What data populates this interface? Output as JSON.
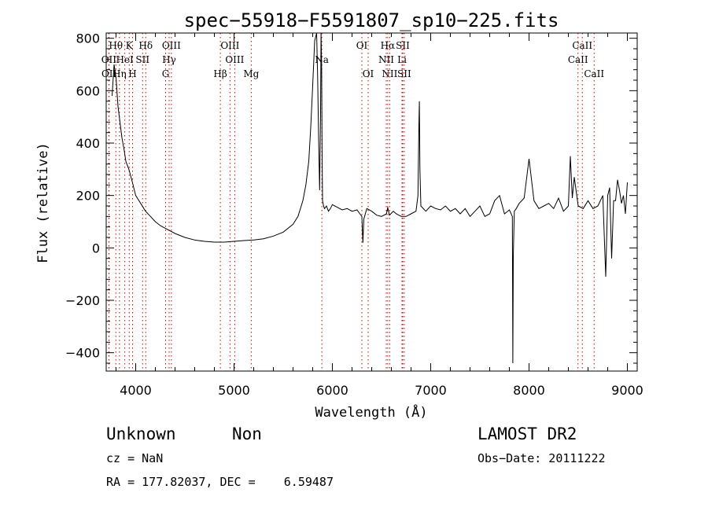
{
  "chart_data": {
    "type": "line",
    "title": "spec−55918−F5591807_sp10−225.fits",
    "xlabel": "Wavelength (Å)",
    "ylabel": "Flux (relative)",
    "xlim": [
      3700,
      9100
    ],
    "ylim": [
      -470,
      820
    ],
    "xticks": [
      4000,
      5000,
      6000,
      7000,
      8000,
      9000
    ],
    "yticks": [
      -400,
      -200,
      0,
      200,
      400,
      600,
      800
    ],
    "ytick_labels": [
      "−400",
      "−200",
      "0",
      "200",
      "400",
      "600",
      "800"
    ],
    "grid": false,
    "line_color": "#000000",
    "marker_color": "#cc0000",
    "series": [
      {
        "x": [
          3760,
          3780,
          3800,
          3820,
          3840,
          3860,
          3880,
          3900,
          3930,
          3960,
          4000,
          4050,
          4100,
          4150,
          4200,
          4250,
          4300,
          4350,
          4400,
          4500,
          4600,
          4700,
          4800,
          4900,
          5000,
          5100,
          5200,
          5300,
          5400,
          5500,
          5600,
          5650,
          5700,
          5730,
          5760,
          5780,
          5800,
          5820,
          5840,
          5850,
          5860,
          5870,
          5880,
          5885,
          5890,
          5895,
          5900,
          5910,
          5920,
          5940,
          5960,
          5980,
          6000,
          6050,
          6100,
          6150,
          6200,
          6250,
          6280,
          6300,
          6310,
          6320,
          6350,
          6400,
          6450,
          6500,
          6550,
          6563,
          6580,
          6620,
          6650,
          6700,
          6750,
          6800,
          6850,
          6870,
          6880,
          6885,
          6890,
          6900,
          6950,
          7000,
          7050,
          7100,
          7150,
          7200,
          7250,
          7300,
          7350,
          7400,
          7450,
          7500,
          7550,
          7600,
          7650,
          7700,
          7750,
          7800,
          7830,
          7835,
          7840,
          7850,
          7870,
          7900,
          7950,
          8000,
          8050,
          8100,
          8150,
          8200,
          8250,
          8300,
          8350,
          8400,
          8420,
          8440,
          8460,
          8500,
          8550,
          8600,
          8650,
          8700,
          8750,
          8780,
          8800,
          8820,
          8840,
          8860,
          8880,
          8900,
          8920,
          8940,
          8960,
          8980,
          9000
        ],
        "y": [
          580,
          700,
          650,
          540,
          480,
          420,
          380,
          330,
          300,
          260,
          200,
          170,
          140,
          120,
          100,
          85,
          75,
          65,
          55,
          40,
          30,
          25,
          22,
          22,
          25,
          28,
          30,
          35,
          45,
          60,
          90,
          120,
          180,
          240,
          330,
          460,
          620,
          790,
          820,
          650,
          420,
          220,
          520,
          820,
          700,
          380,
          180,
          160,
          150,
          160,
          140,
          150,
          165,
          155,
          145,
          150,
          140,
          145,
          130,
          120,
          20,
          110,
          150,
          140,
          125,
          120,
          130,
          155,
          125,
          140,
          130,
          120,
          120,
          130,
          140,
          200,
          470,
          560,
          300,
          160,
          140,
          160,
          150,
          145,
          160,
          140,
          150,
          130,
          150,
          120,
          140,
          160,
          120,
          130,
          180,
          200,
          130,
          145,
          120,
          -440,
          -30,
          140,
          150,
          170,
          190,
          340,
          180,
          150,
          160,
          170,
          150,
          190,
          140,
          160,
          350,
          190,
          270,
          160,
          150,
          180,
          150,
          160,
          200,
          -110,
          200,
          230,
          -40,
          180,
          180,
          260,
          220,
          170,
          200,
          130,
          250
        ]
      }
    ],
    "line_labels": [
      {
        "text": "Hθ",
        "x": 3798,
        "row": 1
      },
      {
        "text": "K",
        "x": 3934,
        "row": 1
      },
      {
        "text": "Hδ",
        "x": 4102,
        "row": 1
      },
      {
        "text": "OIII",
        "x": 4363,
        "row": 1
      },
      {
        "text": "OIII",
        "x": 4959,
        "row": 1
      },
      {
        "text": "OI",
        "x": 6300,
        "row": 1
      },
      {
        "text": "Hα",
        "x": 6563,
        "row": 1
      },
      {
        "text": "SII",
        "x": 6716,
        "row": 1
      },
      {
        "text": "CaII",
        "x": 8542,
        "row": 1
      },
      {
        "text": "OII",
        "x": 3727,
        "row": 2
      },
      {
        "text": "HeI",
        "x": 3889,
        "row": 2
      },
      {
        "text": "SII",
        "x": 4070,
        "row": 2
      },
      {
        "text": "Hγ",
        "x": 4340,
        "row": 2
      },
      {
        "text": "OIII",
        "x": 5007,
        "row": 2
      },
      {
        "text": "Na",
        "x": 5893,
        "row": 2
      },
      {
        "text": "NII",
        "x": 6548,
        "row": 2
      },
      {
        "text": "Li",
        "x": 6708,
        "row": 2
      },
      {
        "text": "CaII",
        "x": 8498,
        "row": 2
      },
      {
        "text": "OII",
        "x": 3729,
        "row": 3
      },
      {
        "text": "Hη",
        "x": 3835,
        "row": 3
      },
      {
        "text": "H",
        "x": 3968,
        "row": 3
      },
      {
        "text": "G",
        "x": 4304,
        "row": 3
      },
      {
        "text": "Hβ",
        "x": 4861,
        "row": 3
      },
      {
        "text": "Mg",
        "x": 5175,
        "row": 3
      },
      {
        "text": "OI",
        "x": 6364,
        "row": 3
      },
      {
        "text": "NII",
        "x": 6583,
        "row": 3
      },
      {
        "text": "SII",
        "x": 6731,
        "row": 3
      },
      {
        "text": "CaII",
        "x": 8662,
        "row": 3
      }
    ]
  },
  "info": {
    "class": "Unknown",
    "subclass": "Non",
    "survey": "LAMOST DR2",
    "cz": "cz = NaN",
    "obs_date": "Obs−Date: 20111222",
    "coords": "RA = 177.82037, DEC =    6.59487"
  }
}
